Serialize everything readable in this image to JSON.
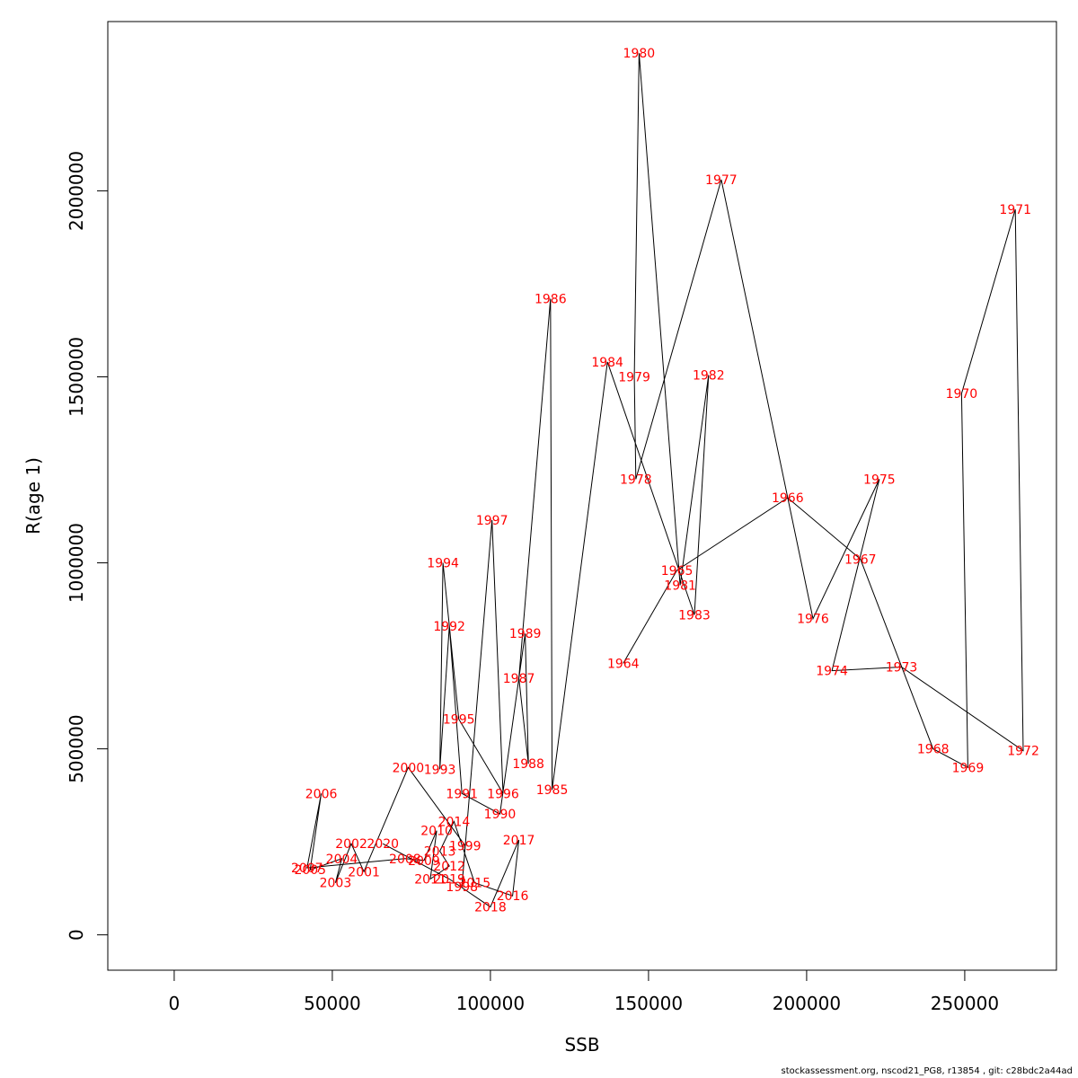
{
  "chart_data": {
    "type": "line",
    "title": "",
    "xlabel": "SSB",
    "ylabel": "R(age 1)",
    "xlim": [
      -21000,
      279000
    ],
    "ylim": [
      -95000,
      2455000
    ],
    "x_ticks": [
      0,
      50000,
      100000,
      150000,
      200000,
      250000
    ],
    "x_tick_labels": [
      "0",
      "50000",
      "100000",
      "150000",
      "200000",
      "250000"
    ],
    "y_ticks": [
      0,
      500000,
      1000000,
      1500000,
      2000000
    ],
    "y_tick_labels": [
      "0",
      "500000",
      "1000000",
      "1500000",
      "2000000"
    ],
    "grid": false,
    "legend": "none",
    "line_color": "#000000",
    "label_color": "#ff0000",
    "points": [
      {
        "year": "1964",
        "x": 142000,
        "y": 730000
      },
      {
        "year": "1965",
        "x": 159000,
        "y": 980000
      },
      {
        "year": "1966",
        "x": 194000,
        "y": 1175000
      },
      {
        "year": "1967",
        "x": 217000,
        "y": 1010000
      },
      {
        "year": "1968",
        "x": 240000,
        "y": 500000
      },
      {
        "year": "1969",
        "x": 251000,
        "y": 450000
      },
      {
        "year": "1970",
        "x": 249000,
        "y": 1455000
      },
      {
        "year": "1971",
        "x": 266000,
        "y": 1950000
      },
      {
        "year": "1972",
        "x": 268500,
        "y": 495000
      },
      {
        "year": "1973",
        "x": 230000,
        "y": 720000
      },
      {
        "year": "1974",
        "x": 208000,
        "y": 710000
      },
      {
        "year": "1975",
        "x": 223000,
        "y": 1225000
      },
      {
        "year": "1976",
        "x": 202000,
        "y": 850000
      },
      {
        "year": "1977",
        "x": 173000,
        "y": 2030000
      },
      {
        "year": "1978",
        "x": 146000,
        "y": 1225000
      },
      {
        "year": "1979",
        "x": 145500,
        "y": 1500000
      },
      {
        "year": "1980",
        "x": 147000,
        "y": 2370000
      },
      {
        "year": "1981",
        "x": 160000,
        "y": 940000
      },
      {
        "year": "1982",
        "x": 169000,
        "y": 1505000
      },
      {
        "year": "1983",
        "x": 164500,
        "y": 860000
      },
      {
        "year": "1984",
        "x": 137000,
        "y": 1540000
      },
      {
        "year": "1985",
        "x": 119500,
        "y": 390000
      },
      {
        "year": "1986",
        "x": 119000,
        "y": 1710000
      },
      {
        "year": "1987",
        "x": 109000,
        "y": 690000
      },
      {
        "year": "1988",
        "x": 112000,
        "y": 460000
      },
      {
        "year": "1989",
        "x": 111000,
        "y": 810000
      },
      {
        "year": "1990",
        "x": 103000,
        "y": 325000
      },
      {
        "year": "1991",
        "x": 91000,
        "y": 380000
      },
      {
        "year": "1992",
        "x": 87000,
        "y": 830000
      },
      {
        "year": "1993",
        "x": 84000,
        "y": 445000
      },
      {
        "year": "1994",
        "x": 85000,
        "y": 1000000
      },
      {
        "year": "1995",
        "x": 90000,
        "y": 580000
      },
      {
        "year": "1996",
        "x": 104000,
        "y": 380000
      },
      {
        "year": "1997",
        "x": 100500,
        "y": 1115000
      },
      {
        "year": "1998",
        "x": 91000,
        "y": 130000
      },
      {
        "year": "1999",
        "x": 92000,
        "y": 240000
      },
      {
        "year": "2000",
        "x": 74000,
        "y": 450000
      },
      {
        "year": "2001",
        "x": 60000,
        "y": 170000
      },
      {
        "year": "2002",
        "x": 56000,
        "y": 245000
      },
      {
        "year": "2003",
        "x": 51000,
        "y": 140000
      },
      {
        "year": "2004",
        "x": 53000,
        "y": 205000
      },
      {
        "year": "2005",
        "x": 43000,
        "y": 175000
      },
      {
        "year": "2006",
        "x": 46500,
        "y": 380000
      },
      {
        "year": "2007",
        "x": 42000,
        "y": 180000
      },
      {
        "year": "2008",
        "x": 73000,
        "y": 205000
      },
      {
        "year": "2009",
        "x": 79000,
        "y": 200000
      },
      {
        "year": "2010",
        "x": 83000,
        "y": 280000
      },
      {
        "year": "2011",
        "x": 81000,
        "y": 150000
      },
      {
        "year": "2012",
        "x": 87000,
        "y": 185000
      },
      {
        "year": "2013",
        "x": 84000,
        "y": 225000
      },
      {
        "year": "2014",
        "x": 88500,
        "y": 305000
      },
      {
        "year": "2015",
        "x": 95000,
        "y": 140000
      },
      {
        "year": "2016",
        "x": 107000,
        "y": 105000
      },
      {
        "year": "2017",
        "x": 109000,
        "y": 255000
      },
      {
        "year": "2018",
        "x": 100000,
        "y": 75000
      },
      {
        "year": "2019",
        "x": 87000,
        "y": 150000
      },
      {
        "year": "2020",
        "x": 66000,
        "y": 245000
      }
    ]
  },
  "footer": {
    "note": "stockassessment.org, nscod21_PG8, r13854 , git: c28bdc2a44ad"
  }
}
